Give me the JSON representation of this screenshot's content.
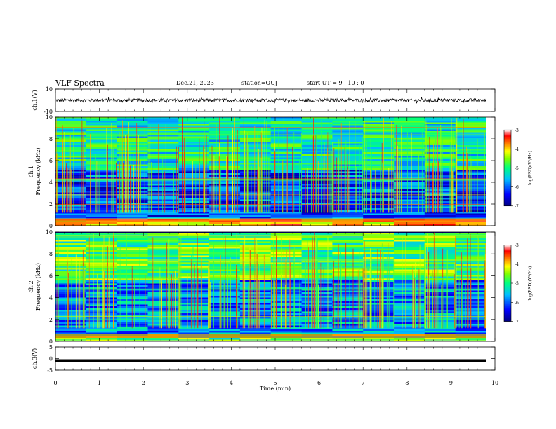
{
  "header": {
    "title": "VLF Spectra",
    "date": "Dec.21, 2023",
    "station": "station=OUJ",
    "start_ut": "start  UT  =  9 : 10 : 0"
  },
  "colors": {
    "axis": "#000000",
    "waveform": "#000000",
    "colormap": [
      "#000080",
      "#0000ff",
      "#00bfff",
      "#00ff80",
      "#80ff00",
      "#ffff00",
      "#ff8000",
      "#ff0000",
      "#ffffff"
    ]
  },
  "chart_data": [
    {
      "type": "line",
      "panel": "ch1-waveform",
      "ylabel": "ch.1(V)",
      "ylim": [
        -10,
        10
      ],
      "y_ticks": [
        "10",
        "-10"
      ],
      "xlim": [
        0,
        10
      ],
      "x_end": 9.8,
      "approx_amplitude": [
        -1.6,
        1.4
      ]
    },
    {
      "type": "heatmap",
      "panel": "ch1-spectrogram",
      "ylabel_line1": "ch.1",
      "ylabel_line2": "Frequency (kHz)",
      "ylim": [
        0,
        10
      ],
      "y_ticks": [
        "0",
        "2",
        "4",
        "6",
        "8",
        "10"
      ],
      "xlim": [
        0,
        10
      ],
      "x_end": 9.8,
      "colorbar": {
        "label": "log(PSD)(V²/Hz)",
        "range": [
          -7,
          -3
        ],
        "ticks": [
          "-3",
          "-4",
          "-5",
          "-6",
          "-7"
        ]
      }
    },
    {
      "type": "heatmap",
      "panel": "ch2-spectrogram",
      "ylabel_line1": "ch.2",
      "ylabel_line2": "Frequency (kHz)",
      "ylim": [
        0,
        10
      ],
      "y_ticks": [
        "0",
        "2",
        "4",
        "6",
        "8",
        "10"
      ],
      "xlim": [
        0,
        10
      ],
      "x_end": 9.8,
      "colorbar": {
        "label": "log(PSD)(V²/Hz)",
        "range": [
          -7,
          -3
        ],
        "ticks": [
          "-3",
          "-4",
          "-5",
          "-6",
          "-7"
        ]
      }
    },
    {
      "type": "line",
      "panel": "ch3-waveform",
      "ylabel": "ch.3(V)",
      "ylim": [
        -5,
        5
      ],
      "y_ticks": [
        "5",
        "0",
        "-5"
      ],
      "xlim": [
        0,
        10
      ],
      "x_end": 9.8,
      "constant_value": -0.9,
      "xlabel": "Time (min)",
      "x_ticks": [
        "0",
        "1",
        "2",
        "3",
        "4",
        "5",
        "6",
        "7",
        "8",
        "9",
        "10"
      ]
    }
  ]
}
